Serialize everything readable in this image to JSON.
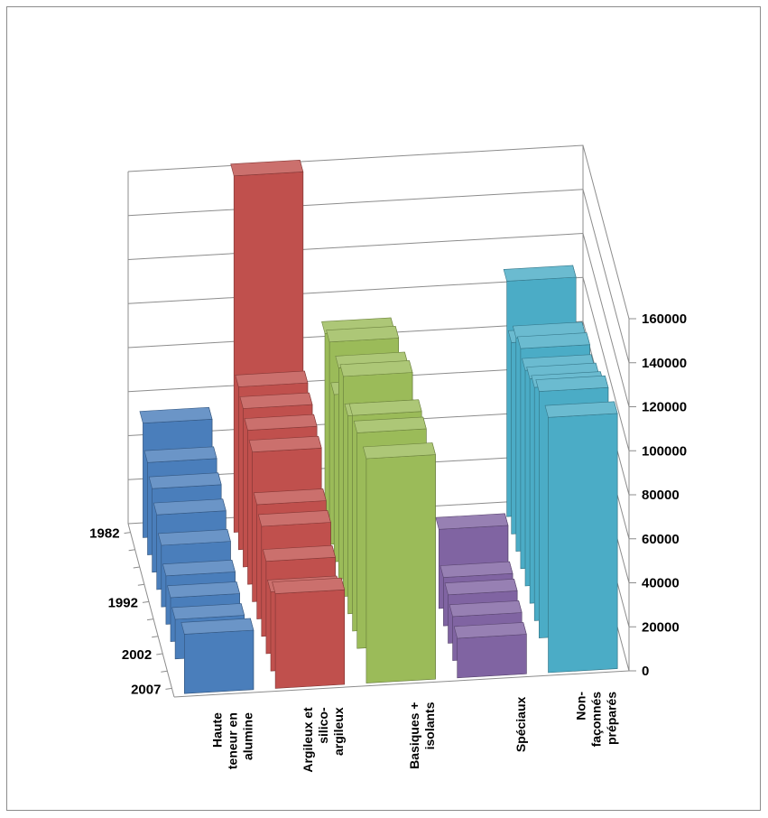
{
  "chart_data": {
    "type": "bar",
    "subtype": "3d-column",
    "title": "",
    "xlabel": "",
    "ylabel": "",
    "ylim": [
      0,
      160000
    ],
    "y_ticks": [
      "0",
      "20000",
      "40000",
      "60000",
      "80000",
      "100000",
      "120000",
      "140000",
      "160000"
    ],
    "depth_tick_labels": [
      "1982",
      "1992",
      "2002",
      "2007"
    ],
    "categories": [
      {
        "lines": [
          "Haute",
          "teneur en",
          "alumine"
        ],
        "color": "#4a7ebb"
      },
      {
        "lines": [
          "Argileux et",
          "silico-",
          "argileux"
        ],
        "color": "#c0504d"
      },
      {
        "lines": [
          "Basiques +",
          "isolants"
        ],
        "color": "#9bbb59"
      },
      {
        "lines": [
          "Spéciaux"
        ],
        "color": "#8064a2"
      },
      {
        "lines": [
          "Non-",
          "façonnés",
          "préparés"
        ],
        "color": "#4bacc6"
      }
    ],
    "series": [
      {
        "label": "1982",
        "values": [
          52000,
          162000,
          88000,
          0,
          107000
        ]
      },
      {
        "label": "",
        "values": [
          42000,
          74000,
          92000,
          0,
          87000
        ]
      },
      {
        "label": "",
        "values": [
          38000,
          72000,
          76000,
          0,
          97000
        ]
      },
      {
        "label": "",
        "values": [
          34000,
          70000,
          96000,
          0,
          100000
        ]
      },
      {
        "label": "1992",
        "values": [
          28000,
          68000,
          100000,
          0,
          98000
        ]
      },
      {
        "label": "",
        "values": [
          22000,
          52000,
          90000,
          36000,
          102000
        ]
      },
      {
        "label": "",
        "values": [
          20000,
          50000,
          98000,
          22000,
          106000
        ]
      },
      {
        "label": "2002",
        "values": [
          18000,
          42000,
          98000,
          22000,
          112000
        ]
      },
      {
        "label": "",
        "values": [
          0,
          36000,
          0,
          20000,
          0
        ]
      },
      {
        "label": "2007",
        "values": [
          27000,
          43000,
          102000,
          18000,
          116000
        ]
      }
    ]
  }
}
